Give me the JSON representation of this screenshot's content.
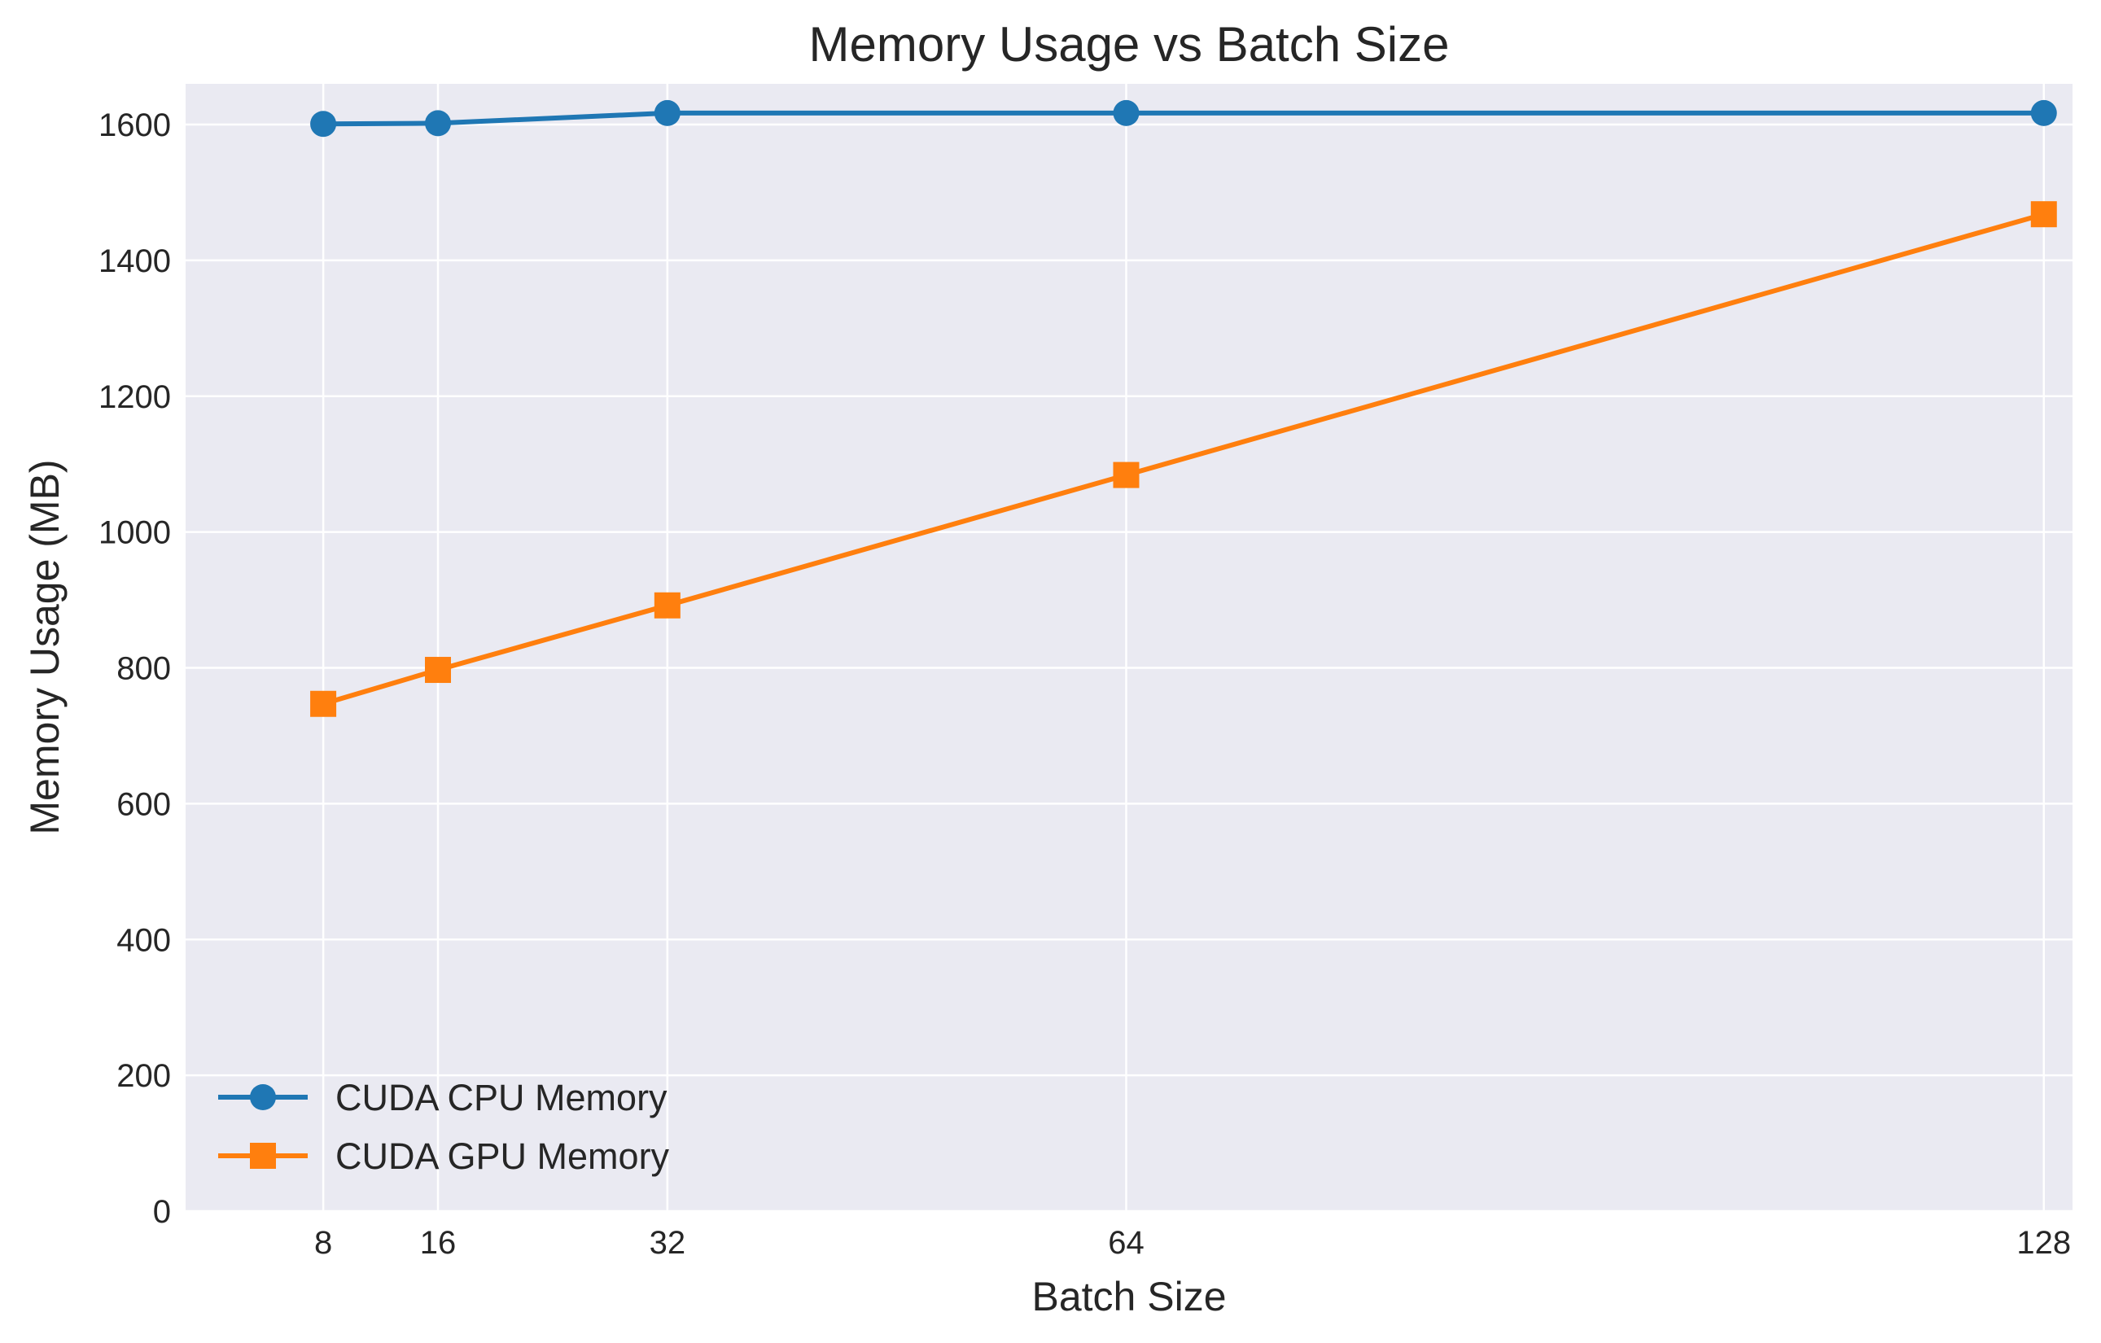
{
  "chart_data": {
    "type": "line",
    "title": "Memory Usage vs Batch Size",
    "xlabel": "Batch Size",
    "ylabel": "Memory Usage (MB)",
    "x": [
      8,
      16,
      32,
      64,
      128
    ],
    "xticks": [
      "8",
      "16",
      "32",
      "64",
      "128"
    ],
    "xlim": [
      -1.6,
      130
    ],
    "ylim": [
      0,
      1660
    ],
    "yticks": [
      0,
      200,
      400,
      600,
      800,
      1000,
      1200,
      1400,
      1600
    ],
    "grid": true,
    "legend_position": "lower-left",
    "series": [
      {
        "name": "CUDA CPU Memory",
        "color": "#1f77b4",
        "marker": "circle",
        "values": [
          1601,
          1602,
          1617,
          1617,
          1617
        ]
      },
      {
        "name": "CUDA GPU Memory",
        "color": "#ff7f0e",
        "marker": "square",
        "values": [
          747,
          797,
          892,
          1084,
          1468
        ]
      }
    ]
  }
}
